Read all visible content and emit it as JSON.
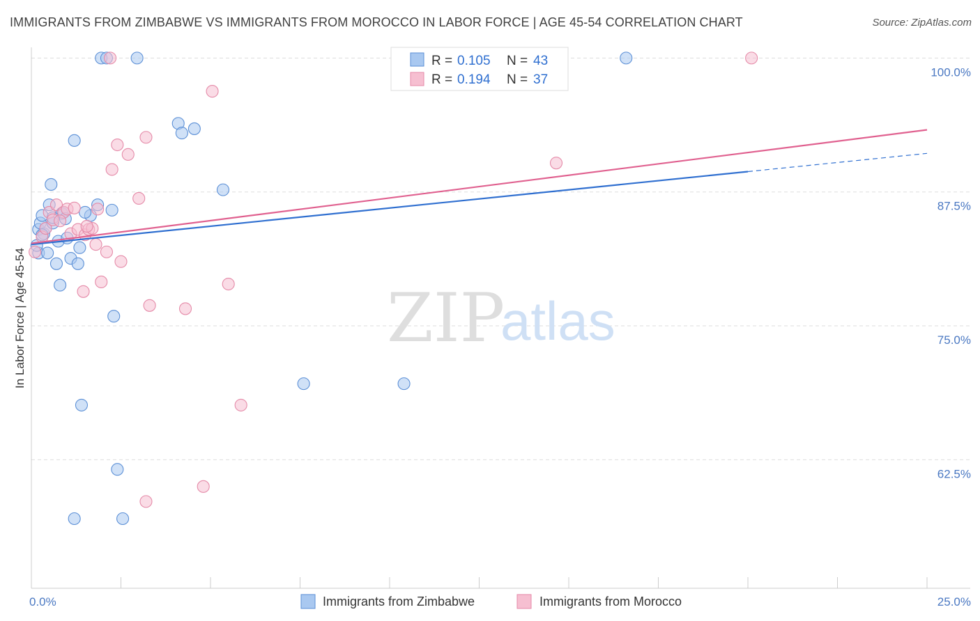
{
  "title": "IMMIGRANTS FROM ZIMBABWE VS IMMIGRANTS FROM MOROCCO IN LABOR FORCE | AGE 45-54 CORRELATION CHART",
  "source": "Source: ZipAtlas.com",
  "watermark": {
    "zip": "ZIP",
    "atlas": "atlas"
  },
  "colors": {
    "zimbabwe_fill": "#a9c8f0",
    "zimbabwe_stroke": "#5b8fd6",
    "zimbabwe_line": "#2f6fd0",
    "morocco_fill": "#f6bfd1",
    "morocco_stroke": "#e58aa8",
    "morocco_line": "#e0608f",
    "grid": "#dddddd",
    "tick_label": "#4a78c2"
  },
  "legend": {
    "rows": [
      {
        "r_label": "R = ",
        "r_value": "0.105",
        "n_label": "N = ",
        "n_value": "43"
      },
      {
        "r_label": "R = ",
        "r_value": "0.194",
        "n_label": "N = ",
        "n_value": "37"
      }
    ]
  },
  "chart_data": {
    "type": "scatter",
    "title": "IMMIGRANTS FROM ZIMBABWE VS IMMIGRANTS FROM MOROCCO IN LABOR FORCE | AGE 45-54 CORRELATION CHART",
    "xlabel": "",
    "ylabel": "In Labor Force | Age 45-54",
    "xlim": [
      0,
      25
    ],
    "ylim": [
      50.5,
      101
    ],
    "x_tick_labels": [
      {
        "value": 0,
        "label": "0.0%"
      },
      {
        "value": 25,
        "label": "25.0%"
      }
    ],
    "y_tick_labels": [
      {
        "value": 100,
        "label": "100.0%"
      },
      {
        "value": 87.5,
        "label": "87.5%"
      },
      {
        "value": 75,
        "label": "75.0%"
      },
      {
        "value": 62.5,
        "label": "62.5%"
      }
    ],
    "grid": true,
    "legend_position": "top-center",
    "series": [
      {
        "name": "Immigrants from Zimbabwe",
        "r": 0.105,
        "n": 43,
        "trend": {
          "x_start": 0,
          "y_start": 82.6,
          "x_end": 20,
          "y_end": 89.4,
          "dashed_to_x": 25,
          "dashed_to_y": 91.1
        },
        "points": [
          [
            0.2,
            81.8
          ],
          [
            0.2,
            84.0
          ],
          [
            0.25,
            84.6
          ],
          [
            0.3,
            85.3
          ],
          [
            0.35,
            83.6
          ],
          [
            0.4,
            84.1
          ],
          [
            0.45,
            81.8
          ],
          [
            0.5,
            86.3
          ],
          [
            0.55,
            88.2
          ],
          [
            0.6,
            84.6
          ],
          [
            0.7,
            80.8
          ],
          [
            0.75,
            82.9
          ],
          [
            0.8,
            78.8
          ],
          [
            0.85,
            85.5
          ],
          [
            0.9,
            85.6
          ],
          [
            0.95,
            85.0
          ],
          [
            1.0,
            83.2
          ],
          [
            1.1,
            81.3
          ],
          [
            1.2,
            57.0
          ],
          [
            1.3,
            80.8
          ],
          [
            1.35,
            82.3
          ],
          [
            1.4,
            67.6
          ],
          [
            1.65,
            85.3
          ],
          [
            1.85,
            86.3
          ],
          [
            1.95,
            100.0
          ],
          [
            2.1,
            100.0
          ],
          [
            2.4,
            61.6
          ],
          [
            2.25,
            85.8
          ],
          [
            2.3,
            75.9
          ],
          [
            2.55,
            57.0
          ],
          [
            2.95,
            100.0
          ],
          [
            4.1,
            93.9
          ],
          [
            4.2,
            93.0
          ],
          [
            4.55,
            93.4
          ],
          [
            5.35,
            87.7
          ],
          [
            7.6,
            69.6
          ],
          [
            10.4,
            69.6
          ],
          [
            16.6,
            100.0
          ],
          [
            1.2,
            92.3
          ],
          [
            0.6,
            85.1
          ],
          [
            0.3,
            83.5
          ],
          [
            0.15,
            82.5
          ],
          [
            1.5,
            85.6
          ]
        ]
      },
      {
        "name": "Immigrants from Morocco",
        "r": 0.194,
        "n": 37,
        "trend": {
          "x_start": 0,
          "y_start": 82.7,
          "x_end": 25,
          "y_end": 93.3
        },
        "points": [
          [
            0.1,
            81.9
          ],
          [
            0.3,
            83.3
          ],
          [
            0.4,
            84.1
          ],
          [
            0.5,
            85.6
          ],
          [
            0.6,
            84.9
          ],
          [
            0.7,
            86.3
          ],
          [
            0.9,
            85.6
          ],
          [
            1.0,
            85.9
          ],
          [
            1.1,
            83.6
          ],
          [
            1.2,
            86.0
          ],
          [
            1.3,
            84.0
          ],
          [
            1.45,
            78.2
          ],
          [
            1.5,
            83.5
          ],
          [
            1.6,
            84.0
          ],
          [
            1.7,
            84.1
          ],
          [
            1.8,
            82.6
          ],
          [
            1.85,
            85.9
          ],
          [
            1.95,
            79.1
          ],
          [
            2.1,
            81.9
          ],
          [
            2.2,
            100.0
          ],
          [
            2.25,
            89.6
          ],
          [
            2.4,
            91.9
          ],
          [
            2.5,
            81.0
          ],
          [
            2.7,
            91.0
          ],
          [
            3.0,
            86.9
          ],
          [
            3.2,
            58.6
          ],
          [
            3.2,
            92.6
          ],
          [
            3.3,
            76.9
          ],
          [
            4.3,
            76.6
          ],
          [
            4.8,
            60.0
          ],
          [
            5.05,
            96.9
          ],
          [
            5.5,
            78.9
          ],
          [
            5.85,
            67.6
          ],
          [
            14.65,
            90.2
          ],
          [
            20.1,
            100.0
          ],
          [
            0.8,
            84.8
          ],
          [
            1.55,
            84.3
          ]
        ]
      }
    ]
  }
}
